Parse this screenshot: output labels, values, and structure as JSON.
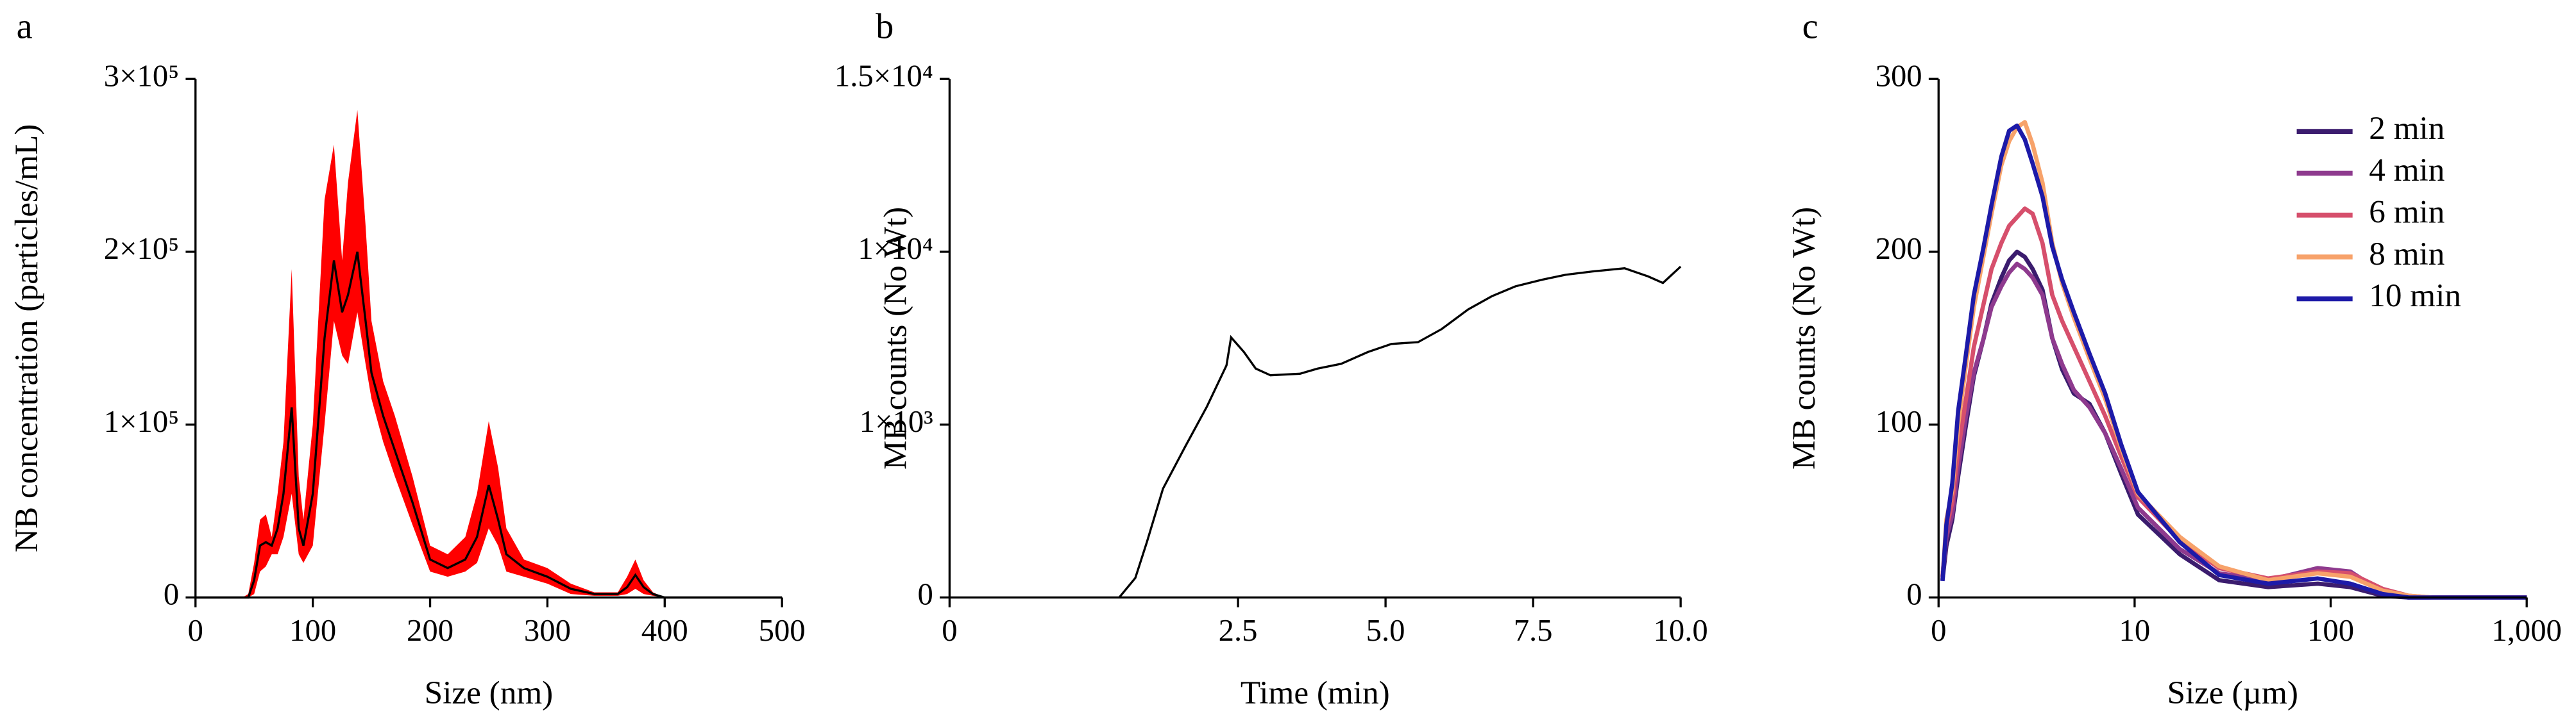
{
  "chart_data": [
    {
      "type": "line",
      "panel": "a",
      "xlabel": "Size (nm)",
      "ylabel": "NB concentration (particles/mL)",
      "x": [
        0,
        40,
        45,
        50,
        55,
        60,
        65,
        70,
        75,
        82,
        88,
        92,
        100,
        110,
        118,
        125,
        130,
        138,
        145,
        150,
        160,
        170,
        185,
        200,
        215,
        230,
        240,
        250,
        258,
        265,
        280,
        300,
        320,
        340,
        360,
        368,
        375,
        382,
        390,
        400,
        500
      ],
      "values": [
        0,
        0,
        0,
        10000,
        30000,
        32000,
        30000,
        40000,
        60000,
        110000,
        40000,
        30000,
        60000,
        150000,
        195000,
        165000,
        175000,
        200000,
        160000,
        130000,
        105000,
        85000,
        55000,
        22000,
        17000,
        22000,
        35000,
        65000,
        45000,
        25000,
        17000,
        12000,
        5000,
        2000,
        2000,
        6000,
        13000,
        6000,
        2000,
        0,
        0
      ],
      "color": "#000000",
      "band": {
        "color": "#ff0000",
        "upper": [
          0,
          0,
          2000,
          20000,
          45000,
          48000,
          35000,
          60000,
          90000,
          190000,
          70000,
          45000,
          100000,
          230000,
          262000,
          195000,
          240000,
          282000,
          215000,
          160000,
          125000,
          105000,
          70000,
          30000,
          25000,
          35000,
          60000,
          102000,
          75000,
          40000,
          22000,
          17000,
          8000,
          3000,
          3000,
          12000,
          22000,
          10000,
          3000,
          0,
          0
        ],
        "lower": [
          0,
          0,
          0,
          2000,
          15000,
          18000,
          25000,
          25000,
          35000,
          60000,
          25000,
          20000,
          30000,
          100000,
          160000,
          140000,
          135000,
          165000,
          135000,
          115000,
          90000,
          70000,
          42000,
          15000,
          12000,
          15000,
          20000,
          40000,
          30000,
          15000,
          12000,
          8000,
          2000,
          1000,
          1000,
          2000,
          5000,
          2000,
          1000,
          0,
          0
        ]
      },
      "xlim": [
        0,
        500
      ],
      "xticks": [
        0,
        100,
        200,
        300,
        400,
        500
      ],
      "ylim": [
        0,
        300000
      ],
      "yticks": [
        0,
        {
          "value": 100000,
          "label": "1×10⁵"
        },
        {
          "value": 200000,
          "label": "2×10⁵"
        },
        {
          "value": 300000,
          "label": "3×10⁵"
        }
      ],
      "grid": false
    },
    {
      "type": "line",
      "panel": "b",
      "xlabel": "Time (min)",
      "ylabel": "MB counts (No Wt)",
      "x": [
        1.47,
        1.61,
        1.71,
        1.85,
        2.04,
        2.23,
        2.4,
        2.44,
        2.6,
        2.8,
        3.05,
        3.55,
        3.85,
        4.25,
        4.7,
        5.1,
        5.55,
        5.95,
        6.4,
        6.8,
        7.2,
        7.65,
        8.05,
        8.5,
        9.05,
        9.45,
        9.7,
        10.0
      ],
      "values": [
        0,
        113,
        320,
        630,
        870,
        1270,
        2200,
        3200,
        2630,
        2110,
        1930,
        1970,
        2110,
        2250,
        2630,
        2930,
        3000,
        3570,
        4640,
        5530,
        6310,
        6890,
        7360,
        7690,
        8030,
        7200,
        6600,
        8210
      ],
      "color": "#000000",
      "xlim": [
        0,
        10
      ],
      "xticks": [
        0,
        2.5,
        {
          "value": 5,
          "label": "5.0"
        },
        7.5,
        {
          "value": 10,
          "label": "10.0"
        }
      ],
      "ylim": [
        0,
        15000
      ],
      "yscale": "log",
      "yticks": [
        0,
        {
          "value": 1000,
          "label": "1×10³"
        },
        {
          "value": 10000,
          "label": "1×10⁴"
        },
        {
          "value": 15000,
          "label": "1.5×10⁴"
        }
      ],
      "grid": false
    },
    {
      "type": "line",
      "panel": "c",
      "xlabel": "Size (µm)",
      "ylabel": "MB counts (No Wt)",
      "x": [
        0.2,
        0.4,
        0.7,
        1.0,
        1.4,
        1.8,
        2.3,
        2.7,
        3.2,
        3.6,
        4.0,
        4.4,
        4.8,
        5.3,
        5.8,
        6.3,
        6.9,
        7.7,
        8.5,
        9.3,
        10.4,
        17,
        27,
        48,
        86,
        126,
        184,
        250,
        330,
        1000
      ],
      "series": [
        {
          "name": "2 min",
          "color": "#3b1c6e",
          "values": [
            10,
            30,
            45,
            70,
            100,
            128,
            150,
            170,
            185,
            195,
            200,
            197,
            190,
            178,
            150,
            132,
            118,
            112,
            95,
            72,
            48,
            25,
            10,
            6,
            8,
            6,
            1,
            0,
            0,
            0
          ]
        },
        {
          "name": "4 min",
          "color": "#8e3a8e",
          "values": [
            12,
            35,
            48,
            75,
            105,
            130,
            150,
            168,
            180,
            188,
            193,
            190,
            185,
            175,
            150,
            135,
            120,
            110,
            95,
            75,
            52,
            28,
            14,
            10,
            17,
            15,
            3,
            0,
            0,
            0
          ]
        },
        {
          "name": "6 min",
          "color": "#d64f6c",
          "values": [
            12,
            40,
            55,
            85,
            115,
            145,
            170,
            190,
            205,
            215,
            220,
            225,
            222,
            205,
            175,
            160,
            145,
            125,
            105,
            82,
            58,
            33,
            17,
            11,
            15,
            14,
            5,
            1,
            0,
            0
          ]
        },
        {
          "name": "8 min",
          "color": "#f7a26a",
          "values": [
            10,
            45,
            62,
            100,
            135,
            168,
            198,
            222,
            250,
            264,
            272,
            275,
            262,
            240,
            205,
            182,
            162,
            138,
            115,
            87,
            60,
            35,
            18,
            10,
            14,
            12,
            4,
            1,
            0,
            0
          ]
        },
        {
          "name": "10 min",
          "color": "#1d1aa8",
          "values": [
            9.5,
            42,
            66,
            108,
            141,
            175,
            203,
            227,
            255,
            270,
            273,
            265,
            251,
            232,
            203,
            184,
            165,
            141,
            118,
            89,
            61,
            32,
            13,
            8,
            11,
            8,
            2,
            0,
            0,
            0
          ]
        }
      ],
      "xlim": [
        0,
        1000
      ],
      "xscale": "log",
      "xticks": [
        0,
        10,
        100,
        {
          "value": 1000,
          "label": "1,000"
        }
      ],
      "ylim": [
        0,
        300
      ],
      "yticks": [
        0,
        100,
        200,
        300
      ],
      "legend": "upper right",
      "grid": false
    }
  ]
}
